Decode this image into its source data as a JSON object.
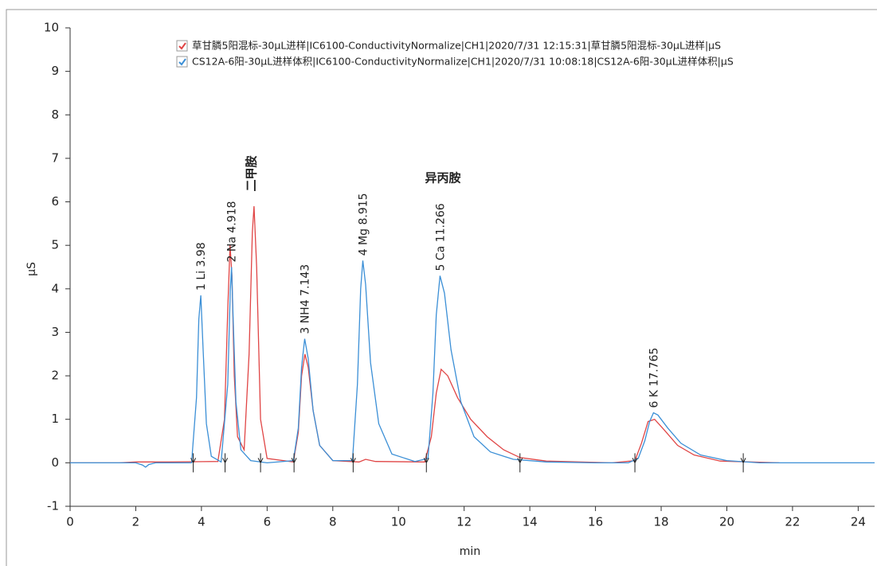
{
  "chart_data": {
    "type": "line",
    "x_label": "min",
    "y_label": "µS",
    "xlim": [
      0,
      24.5
    ],
    "ylim": [
      -1,
      10
    ],
    "xticks": [
      0,
      2,
      4,
      6,
      8,
      10,
      12,
      14,
      16,
      18,
      20,
      22,
      24
    ],
    "yticks": [
      -1,
      0,
      1,
      2,
      3,
      4,
      5,
      6,
      7,
      8,
      9,
      10
    ],
    "series": [
      {
        "name": "草甘膦5阳混标-30µL进样|IC6100-ConductivityNormalize|CH1|2020/7/31  12:15:31|草甘膦5阳混标-30µL进样|µS",
        "color": "#e04545",
        "x": [
          0,
          1.5,
          2,
          3,
          4.5,
          4.7,
          4.8,
          4.87,
          4.93,
          5.0,
          5.1,
          5.3,
          5.45,
          5.55,
          5.6,
          5.68,
          5.8,
          6.0,
          6.8,
          6.95,
          7.05,
          7.15,
          7.25,
          7.4,
          7.6,
          8,
          8.8,
          9.0,
          9.3,
          10.8,
          11.0,
          11.15,
          11.3,
          11.5,
          11.8,
          12.2,
          12.7,
          13.2,
          13.7,
          14.5,
          16.5,
          17.2,
          17.4,
          17.6,
          17.8,
          18.1,
          18.5,
          19,
          19.8,
          21.6
        ],
        "values": [
          0,
          0,
          0.02,
          0.02,
          0.03,
          1.0,
          3.5,
          5.0,
          4.3,
          2.0,
          0.6,
          0.3,
          2.5,
          5.3,
          5.9,
          4.5,
          1.0,
          0.1,
          0.02,
          0.7,
          2.0,
          2.5,
          2.2,
          1.2,
          0.4,
          0.05,
          0.02,
          0.08,
          0.03,
          0.02,
          0.6,
          1.6,
          2.15,
          2.0,
          1.5,
          1.0,
          0.6,
          0.3,
          0.12,
          0.04,
          0,
          0.05,
          0.45,
          0.95,
          1.0,
          0.75,
          0.4,
          0.18,
          0.04,
          0
        ]
      },
      {
        "name": "CS12A-6阳-30µL进样体积|IC6100-ConductivityNormalize|CH1|2020/7/31 10:08:18|CS12A-6阳-30µL进样体积|µS",
        "color": "#3b8fd6",
        "x": [
          0,
          1,
          2,
          2.2,
          2.3,
          2.4,
          2.6,
          3,
          3.7,
          3.85,
          3.92,
          3.98,
          4.05,
          4.15,
          4.3,
          4.6,
          4.8,
          4.88,
          4.918,
          4.97,
          5.05,
          5.2,
          5.5,
          6,
          6.8,
          6.95,
          7.05,
          7.143,
          7.25,
          7.4,
          7.6,
          8,
          8.6,
          8.75,
          8.85,
          8.915,
          9.0,
          9.15,
          9.4,
          9.8,
          10.5,
          10.9,
          11.05,
          11.15,
          11.266,
          11.4,
          11.6,
          11.9,
          12.3,
          12.8,
          13.5,
          14.5,
          16,
          17.0,
          17.3,
          17.5,
          17.65,
          17.765,
          17.9,
          18.2,
          18.6,
          19.2,
          20,
          21,
          24.5
        ],
        "values": [
          0,
          0,
          0,
          -0.05,
          -0.1,
          -0.04,
          0,
          0,
          0,
          1.5,
          3.3,
          3.85,
          2.6,
          0.9,
          0.15,
          0.02,
          1.8,
          4.0,
          4.5,
          3.2,
          1.4,
          0.3,
          0.05,
          0,
          0.05,
          0.8,
          2.2,
          2.85,
          2.4,
          1.2,
          0.4,
          0.05,
          0.05,
          1.8,
          4.0,
          4.65,
          4.1,
          2.3,
          0.9,
          0.2,
          0.03,
          0.1,
          1.6,
          3.4,
          4.3,
          3.9,
          2.6,
          1.4,
          0.6,
          0.25,
          0.08,
          0.02,
          0,
          0,
          0.1,
          0.5,
          0.95,
          1.15,
          1.1,
          0.8,
          0.45,
          0.18,
          0.05,
          0,
          0
        ]
      }
    ],
    "annotations": [
      {
        "text": "1 Li 3.98",
        "x": 3.98
      },
      {
        "text": "2 Na 4.918",
        "x": 4.918
      },
      {
        "text": "3 NH4 7.143",
        "x": 7.143
      },
      {
        "text": "4 Mg 8.915",
        "x": 8.915
      },
      {
        "text": "5 Ca 11.266",
        "x": 11.266
      },
      {
        "text": "6 K 17.765",
        "x": 17.765
      }
    ],
    "compound_labels": [
      "二甲胺",
      "异丙胺"
    ],
    "integration_marks": [
      3.75,
      4.72,
      5.8,
      6.82,
      8.62,
      10.85,
      13.7,
      17.2,
      20.5
    ]
  }
}
